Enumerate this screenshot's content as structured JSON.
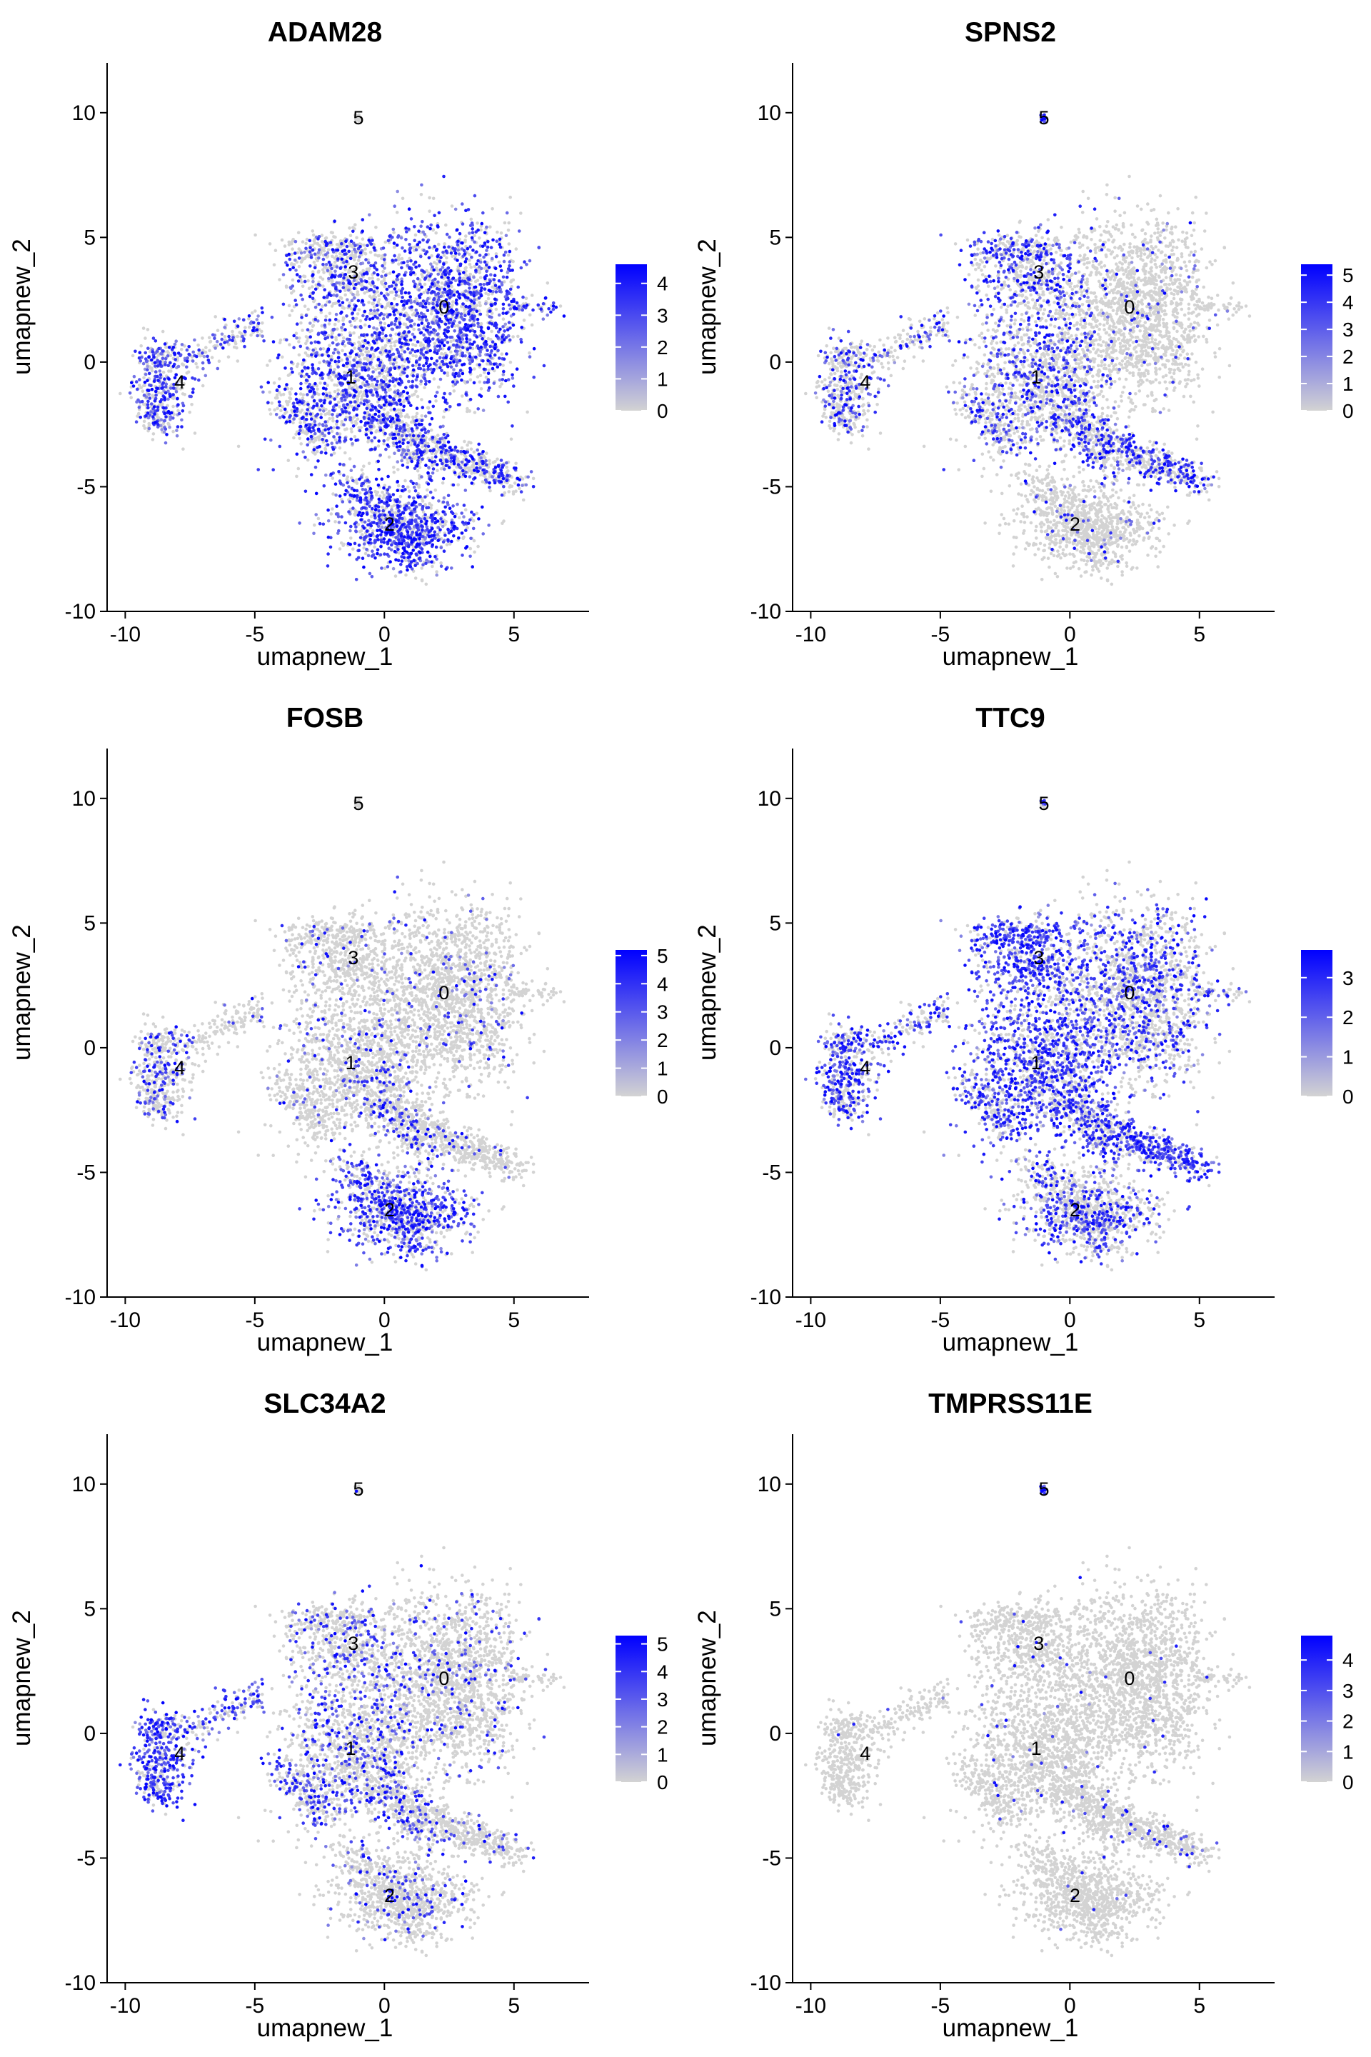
{
  "chart_data": [
    {
      "type": "scatter",
      "title": "ADAM28",
      "xlabel": "umapnew_1",
      "ylabel": "umapnew_2",
      "xlim": [
        -10.7,
        7.9
      ],
      "ylim": [
        -10,
        12
      ],
      "xticks": [
        "-10",
        "-5",
        "0",
        "5"
      ],
      "yticks": [
        "-10",
        "-5",
        "0",
        "5",
        "10"
      ],
      "color_scale": {
        "low": "#d3d3d3",
        "high": "#0000ff",
        "min": 0,
        "max": 4.6,
        "ticks": [
          "0",
          "1",
          "2",
          "3",
          "4"
        ]
      },
      "expression": {
        "c0": 0.62,
        "c1": 0.55,
        "c2": 0.68,
        "c3": 0.38,
        "c4": 0.55,
        "c5": 0.1,
        "arm": 0.45,
        "branch": 0.42,
        "lower": 0.5
      },
      "cluster_labels": [
        {
          "label": "0",
          "x": 2.3,
          "y": 2.2
        },
        {
          "label": "1",
          "x": -1.3,
          "y": -0.6
        },
        {
          "label": "2",
          "x": 0.2,
          "y": -6.5
        },
        {
          "label": "3",
          "x": -1.2,
          "y": 3.6
        },
        {
          "label": "4",
          "x": -7.9,
          "y": -0.8
        },
        {
          "label": "5",
          "x": -1.0,
          "y": 9.8
        }
      ]
    },
    {
      "type": "scatter",
      "title": "SPNS2",
      "xlabel": "umapnew_1",
      "ylabel": "umapnew_2",
      "xlim": [
        -10.7,
        7.9
      ],
      "ylim": [
        -10,
        12
      ],
      "xticks": [
        "-10",
        "-5",
        "0",
        "5"
      ],
      "yticks": [
        "-10",
        "-5",
        "0",
        "5",
        "10"
      ],
      "color_scale": {
        "low": "#d3d3d3",
        "high": "#0000ff",
        "min": 0,
        "max": 5.4,
        "ticks": [
          "0",
          "1",
          "2",
          "3",
          "4",
          "5"
        ]
      },
      "expression": {
        "c0": 0.05,
        "c1": 0.3,
        "c2": 0.06,
        "c3": 0.45,
        "c4": 0.3,
        "c5": 0.85,
        "arm": 0.35,
        "branch": 0.5,
        "lower": 0.35
      },
      "cluster_labels": [
        {
          "label": "0",
          "x": 2.3,
          "y": 2.2
        },
        {
          "label": "1",
          "x": -1.3,
          "y": -0.6
        },
        {
          "label": "2",
          "x": 0.2,
          "y": -6.5
        },
        {
          "label": "3",
          "x": -1.2,
          "y": 3.6
        },
        {
          "label": "4",
          "x": -7.9,
          "y": -0.8
        },
        {
          "label": "5",
          "x": -1.0,
          "y": 9.8
        }
      ]
    },
    {
      "type": "scatter",
      "title": "FOSB",
      "xlabel": "umapnew_1",
      "ylabel": "umapnew_2",
      "xlim": [
        -10.7,
        7.9
      ],
      "ylim": [
        -10,
        12
      ],
      "xticks": [
        "-10",
        "-5",
        "0",
        "5"
      ],
      "yticks": [
        "-10",
        "-5",
        "0",
        "5",
        "10"
      ],
      "color_scale": {
        "low": "#d3d3d3",
        "high": "#0000ff",
        "min": 0,
        "max": 5.2,
        "ticks": [
          "0",
          "1",
          "2",
          "3",
          "4",
          "5"
        ]
      },
      "expression": {
        "c0": 0.07,
        "c1": 0.08,
        "c2": 0.6,
        "c3": 0.08,
        "c4": 0.25,
        "c5": 0.05,
        "arm": 0.08,
        "branch": 0.06,
        "lower": 0.3
      },
      "cluster_labels": [
        {
          "label": "0",
          "x": 2.3,
          "y": 2.2
        },
        {
          "label": "1",
          "x": -1.3,
          "y": -0.6
        },
        {
          "label": "2",
          "x": 0.2,
          "y": -6.5
        },
        {
          "label": "3",
          "x": -1.2,
          "y": 3.6
        },
        {
          "label": "4",
          "x": -7.9,
          "y": -0.8
        },
        {
          "label": "5",
          "x": -1.0,
          "y": 9.8
        }
      ]
    },
    {
      "type": "scatter",
      "title": "TTC9",
      "xlabel": "umapnew_1",
      "ylabel": "umapnew_2",
      "xlim": [
        -10.7,
        7.9
      ],
      "ylim": [
        -10,
        12
      ],
      "xticks": [
        "-10",
        "-5",
        "0",
        "5"
      ],
      "yticks": [
        "-10",
        "-5",
        "0",
        "5",
        "10"
      ],
      "color_scale": {
        "low": "#d3d3d3",
        "high": "#0000ff",
        "min": 0,
        "max": 3.7,
        "ticks": [
          "0",
          "1",
          "2",
          "3"
        ]
      },
      "expression": {
        "c0": 0.35,
        "c1": 0.62,
        "c2": 0.35,
        "c3": 0.72,
        "c4": 0.55,
        "c5": 0.7,
        "arm": 0.5,
        "branch": 0.72,
        "lower": 0.45
      },
      "cluster_labels": [
        {
          "label": "0",
          "x": 2.3,
          "y": 2.2
        },
        {
          "label": "1",
          "x": -1.3,
          "y": -0.6
        },
        {
          "label": "2",
          "x": 0.2,
          "y": -6.5
        },
        {
          "label": "3",
          "x": -1.2,
          "y": 3.6
        },
        {
          "label": "4",
          "x": -7.9,
          "y": -0.8
        },
        {
          "label": "5",
          "x": -1.0,
          "y": 9.8
        }
      ]
    },
    {
      "type": "scatter",
      "title": "SLC34A2",
      "xlabel": "umapnew_1",
      "ylabel": "umapnew_2",
      "xlim": [
        -10.7,
        7.9
      ],
      "ylim": [
        -10,
        12
      ],
      "xticks": [
        "-10",
        "-5",
        "0",
        "5"
      ],
      "yticks": [
        "-10",
        "-5",
        "0",
        "5",
        "10"
      ],
      "color_scale": {
        "low": "#d3d3d3",
        "high": "#0000ff",
        "min": 0,
        "max": 5.3,
        "ticks": [
          "0",
          "1",
          "2",
          "3",
          "4",
          "5"
        ]
      },
      "expression": {
        "c0": 0.1,
        "c1": 0.25,
        "c2": 0.12,
        "c3": 0.22,
        "c4": 0.72,
        "c5": 0.1,
        "arm": 0.5,
        "branch": 0.08,
        "lower": 0.3
      },
      "cluster_labels": [
        {
          "label": "0",
          "x": 2.3,
          "y": 2.2
        },
        {
          "label": "1",
          "x": -1.3,
          "y": -0.6
        },
        {
          "label": "2",
          "x": 0.2,
          "y": -6.5
        },
        {
          "label": "3",
          "x": -1.2,
          "y": 3.6
        },
        {
          "label": "4",
          "x": -7.9,
          "y": -0.8
        },
        {
          "label": "5",
          "x": -1.0,
          "y": 9.8
        }
      ]
    },
    {
      "type": "scatter",
      "title": "TMPRSS11E",
      "xlabel": "umapnew_1",
      "ylabel": "umapnew_2",
      "xlim": [
        -10.7,
        7.9
      ],
      "ylim": [
        -10,
        12
      ],
      "xticks": [
        "-10",
        "-5",
        "0",
        "5"
      ],
      "yticks": [
        "-10",
        "-5",
        "0",
        "5",
        "10"
      ],
      "color_scale": {
        "low": "#d3d3d3",
        "high": "#0000ff",
        "min": 0,
        "max": 4.8,
        "ticks": [
          "0",
          "1",
          "2",
          "3",
          "4"
        ]
      },
      "expression": {
        "c0": 0.01,
        "c1": 0.03,
        "c2": 0.01,
        "c3": 0.02,
        "c4": 0.01,
        "c5": 0.8,
        "arm": 0.02,
        "branch": 0.06,
        "lower": 0.02
      },
      "cluster_labels": [
        {
          "label": "0",
          "x": 2.3,
          "y": 2.2
        },
        {
          "label": "1",
          "x": -1.3,
          "y": -0.6
        },
        {
          "label": "2",
          "x": 0.2,
          "y": -6.5
        },
        {
          "label": "3",
          "x": -1.2,
          "y": 3.6
        },
        {
          "label": "4",
          "x": -7.9,
          "y": -0.8
        },
        {
          "label": "5",
          "x": -1.0,
          "y": 9.8
        }
      ]
    }
  ]
}
